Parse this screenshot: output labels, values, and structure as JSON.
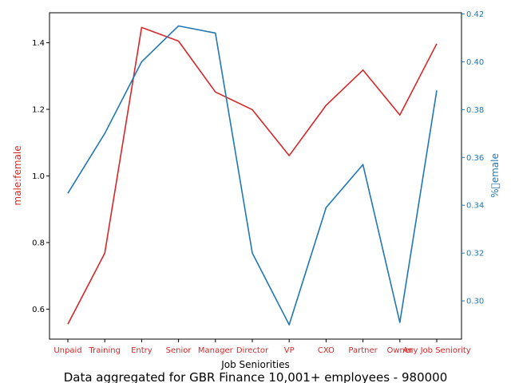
{
  "chart_data": {
    "type": "line",
    "title": "",
    "caption": "Data aggregated for GBR Finance 10,001+ employees - 980000",
    "xlabel": "Job Seniorities",
    "categories": [
      "Unpaid",
      "Training",
      "Entry",
      "Senior",
      "Manager",
      "Director",
      "VP",
      "CXO",
      "Partner",
      "Owner",
      "Any Job Seniority"
    ],
    "y_left": {
      "label": "male:female",
      "color": "#d62728",
      "ylim": [
        0.51,
        1.49
      ],
      "ticks": [
        0.6,
        0.8,
        1.0,
        1.2,
        1.4
      ]
    },
    "y_right": {
      "label": "%\u0000emale",
      "color": "#1f77b4",
      "ylim": [
        0.284,
        0.4205
      ],
      "ticks": [
        0.3,
        0.32,
        0.34,
        0.36,
        0.38,
        0.4,
        0.42
      ]
    },
    "series": [
      {
        "axis": "left",
        "color": "#d62728",
        "values": [
          0.555,
          0.768,
          1.446,
          1.405,
          1.252,
          1.199,
          1.061,
          1.212,
          1.318,
          1.183,
          1.397
        ]
      },
      {
        "axis": "right",
        "color": "#1f77b4",
        "values": [
          0.345,
          0.37,
          0.4,
          0.415,
          0.412,
          0.32,
          0.29,
          0.339,
          0.357,
          0.291,
          0.388
        ]
      }
    ],
    "grid": false,
    "legend": "none"
  }
}
